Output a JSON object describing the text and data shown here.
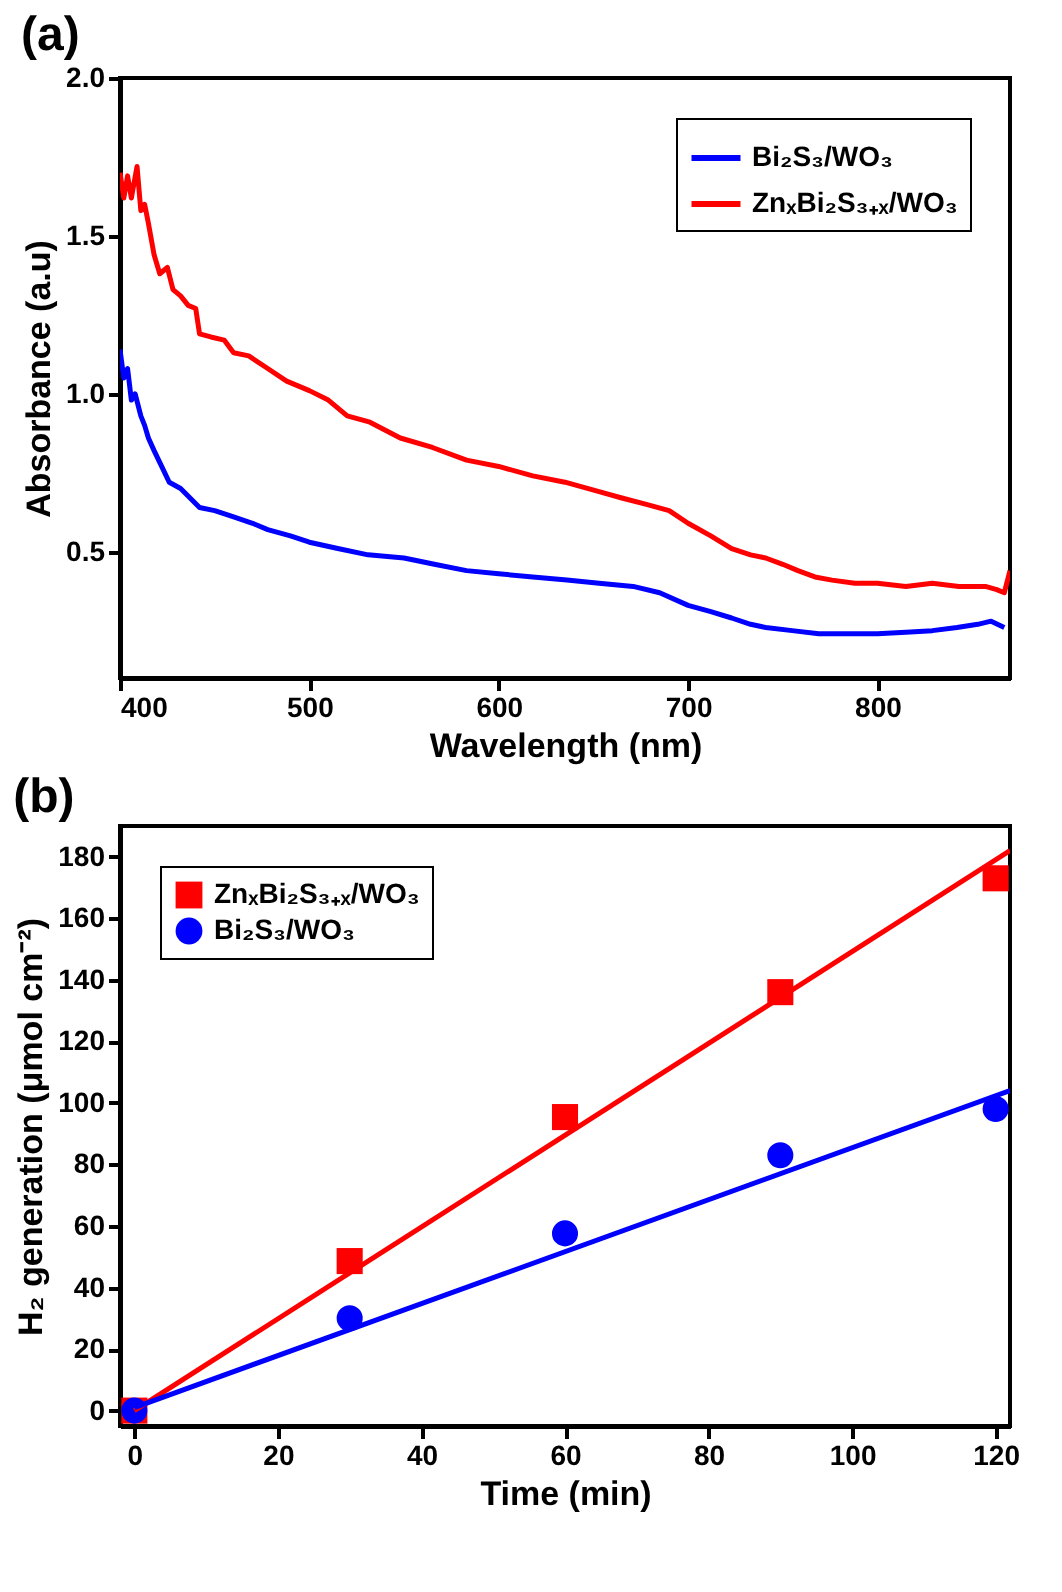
{
  "chart_data": [
    {
      "type": "line",
      "annotations": [
        "(a)"
      ],
      "xlabel": "Wavelength (nm)",
      "ylabel": "Absorbance (a.u)",
      "xlim": [
        400,
        870
      ],
      "ylim": [
        0.1,
        2.0
      ],
      "xticks": [
        400,
        500,
        600,
        700,
        800
      ],
      "yticks": [
        {
          "value": 0.5,
          "label": "0.5"
        },
        {
          "value": 1,
          "label": "1.0"
        },
        {
          "value": 1.5,
          "label": "1.5"
        },
        {
          "value": 2,
          "label": "2.0"
        }
      ],
      "legend": "top right",
      "series": [
        {
          "name": "Bi₂S₃/WO₃",
          "color": "#0000ff",
          "x": [
            400,
            402,
            404,
            406,
            408,
            411,
            413,
            415,
            418,
            422,
            426,
            432,
            437,
            442,
            450,
            460,
            470,
            478,
            490,
            500,
            515,
            531,
            550,
            566,
            583,
            600,
            618,
            636,
            653,
            671,
            685,
            700,
            712,
            723,
            733,
            741,
            755,
            769,
            785,
            800,
            815,
            829,
            842,
            853,
            860,
            867
          ],
          "values": [
            1.14,
            1.05,
            1.08,
            0.98,
            1.0,
            0.93,
            0.9,
            0.86,
            0.82,
            0.77,
            0.72,
            0.7,
            0.67,
            0.64,
            0.63,
            0.61,
            0.59,
            0.57,
            0.55,
            0.53,
            0.51,
            0.49,
            0.48,
            0.46,
            0.44,
            0.43,
            0.42,
            0.41,
            0.4,
            0.39,
            0.37,
            0.33,
            0.31,
            0.29,
            0.27,
            0.26,
            0.25,
            0.24,
            0.24,
            0.24,
            0.245,
            0.25,
            0.26,
            0.27,
            0.28,
            0.26
          ]
        },
        {
          "name": "ZnₓBi₂S₃₊ₓ/WO₃",
          "color": "#ff0000",
          "x": [
            400,
            402,
            404,
            406,
            409,
            411,
            413,
            415,
            418,
            421,
            425,
            428,
            432,
            436,
            440,
            442,
            448,
            455,
            460,
            468,
            478,
            488,
            500,
            510,
            520,
            532,
            548,
            565,
            583,
            600,
            618,
            635,
            653,
            665,
            678,
            690,
            700,
            712,
            723,
            733,
            741,
            750,
            758,
            767,
            776,
            788,
            800,
            815,
            829,
            843,
            857,
            863,
            867,
            870
          ],
          "values": [
            1.7,
            1.62,
            1.69,
            1.62,
            1.72,
            1.58,
            1.6,
            1.54,
            1.44,
            1.38,
            1.4,
            1.33,
            1.31,
            1.28,
            1.27,
            1.19,
            1.18,
            1.17,
            1.13,
            1.12,
            1.08,
            1.04,
            1.01,
            0.98,
            0.93,
            0.91,
            0.86,
            0.83,
            0.79,
            0.77,
            0.74,
            0.72,
            0.69,
            0.67,
            0.65,
            0.63,
            0.59,
            0.55,
            0.51,
            0.49,
            0.48,
            0.46,
            0.44,
            0.42,
            0.41,
            0.4,
            0.4,
            0.39,
            0.4,
            0.39,
            0.39,
            0.38,
            0.37,
            0.44
          ]
        }
      ]
    },
    {
      "type": "scatter",
      "annotations": [
        "(b)"
      ],
      "xlabel": "Time (min)",
      "ylabel": "H₂ generation (μmol cm⁻²)",
      "xlim": [
        -2,
        122
      ],
      "ylim": [
        -5,
        190
      ],
      "xticks": [
        0,
        20,
        40,
        60,
        80,
        100,
        120
      ],
      "yticks": [
        0,
        20,
        40,
        60,
        80,
        100,
        120,
        140,
        160,
        180
      ],
      "legend": "top left",
      "x": [
        0,
        30,
        60,
        90,
        120
      ],
      "series": [
        {
          "name": "ZnₓBi₂S₃₊ₓ/WO₃",
          "color": "#ff0000",
          "marker": "square",
          "values": [
            0,
            48.6,
            95.4,
            136,
            173
          ]
        },
        {
          "name": "Bi₂S₃/WO₃",
          "color": "#0000ff",
          "marker": "circle",
          "values": [
            0,
            30,
            57.6,
            83,
            98
          ]
        },
        {
          "type": "line",
          "color": "#ff0000",
          "x": [
            0,
            122
          ],
          "values": [
            0,
            182
          ]
        },
        {
          "type": "line",
          "color": "#0000ff",
          "x": [
            0,
            122
          ],
          "values": [
            1,
            104
          ]
        }
      ]
    }
  ]
}
